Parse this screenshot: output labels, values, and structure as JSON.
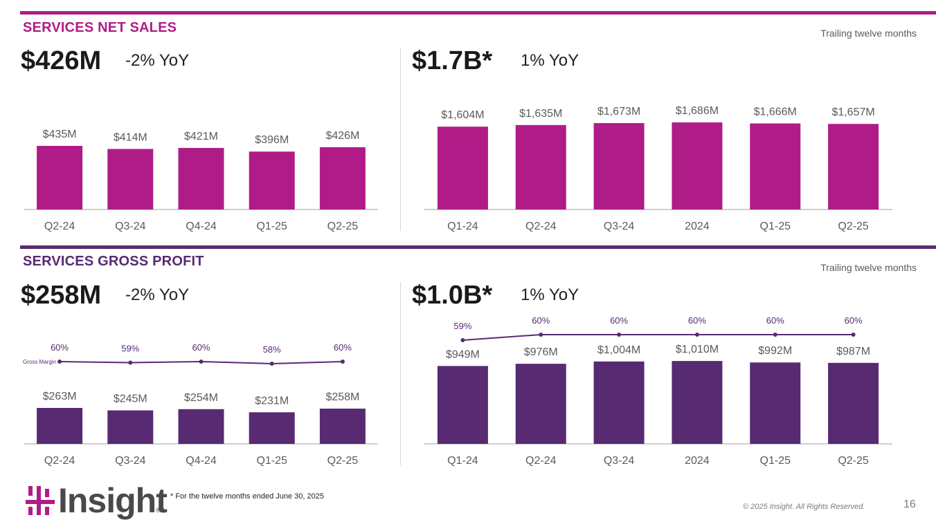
{
  "colors": {
    "sales": "#b01c87",
    "profit": "#582a72",
    "rule_sales": "#b01c87",
    "rule_profit": "#582a72"
  },
  "sales_section": {
    "title": "SERVICES NET SALES",
    "ttm_label": "Trailing twelve months",
    "quarter_headline": "$426M",
    "quarter_yoy": "-2% YoY",
    "ttm_headline": "$1.7B*",
    "ttm_yoy": "1% YoY"
  },
  "profit_section": {
    "title": "SERVICES GROSS PROFIT",
    "ttm_label": "Trailing twelve months",
    "quarter_headline": "$258M",
    "quarter_yoy": "-2% YoY",
    "ttm_headline": "$1.0B*",
    "ttm_yoy": "1% YoY",
    "gross_margin_label": "Gross Margin"
  },
  "footer": {
    "footnote": "* For the twelve months ended June 30, 2025",
    "copyright": "© 2025 Insight. All Rights Reserved.",
    "page_number": "16",
    "logo_text": "Insight",
    "logo_mark": "®"
  },
  "chart_data": [
    {
      "id": "sales_quarterly",
      "type": "bar",
      "categories": [
        "Q2-24",
        "Q3-24",
        "Q4-24",
        "Q1-25",
        "Q2-25"
      ],
      "values": [
        435,
        414,
        421,
        396,
        426
      ],
      "data_labels": [
        "$435M",
        "$414M",
        "$421M",
        "$396M",
        "$426M"
      ],
      "color": "#b01c87",
      "unit": "$M"
    },
    {
      "id": "sales_ttm",
      "type": "bar",
      "categories": [
        "Q1-24",
        "Q2-24",
        "Q3-24",
        "2024",
        "Q1-25",
        "Q2-25"
      ],
      "values": [
        1604,
        1635,
        1673,
        1686,
        1666,
        1657
      ],
      "data_labels": [
        "$1,604M",
        "$1,635M",
        "$1,673M",
        "$1,686M",
        "$1,666M",
        "$1,657M"
      ],
      "color": "#b01c87",
      "unit": "$M"
    },
    {
      "id": "profit_quarterly",
      "type": "bar",
      "categories": [
        "Q2-24",
        "Q3-24",
        "Q4-24",
        "Q1-25",
        "Q2-25"
      ],
      "values": [
        263,
        245,
        254,
        231,
        258
      ],
      "data_labels": [
        "$263M",
        "$245M",
        "$254M",
        "$231M",
        "$258M"
      ],
      "color": "#582a72",
      "unit": "$M",
      "line_series": {
        "name": "Gross Margin",
        "values": [
          60,
          59,
          60,
          58,
          60
        ],
        "data_labels": [
          "60%",
          "59%",
          "60%",
          "58%",
          "60%"
        ]
      }
    },
    {
      "id": "profit_ttm",
      "type": "bar",
      "categories": [
        "Q1-24",
        "Q2-24",
        "Q3-24",
        "2024",
        "Q1-25",
        "Q2-25"
      ],
      "values": [
        949,
        976,
        1004,
        1010,
        992,
        987
      ],
      "data_labels": [
        "$949M",
        "$976M",
        "$1,004M",
        "$1,010M",
        "$992M",
        "$987M"
      ],
      "color": "#582a72",
      "unit": "$M",
      "line_series": {
        "values": [
          59,
          60,
          60,
          60,
          60,
          60
        ],
        "data_labels": [
          "59%",
          "60%",
          "60%",
          "60%",
          "60%",
          "60%"
        ]
      }
    }
  ]
}
